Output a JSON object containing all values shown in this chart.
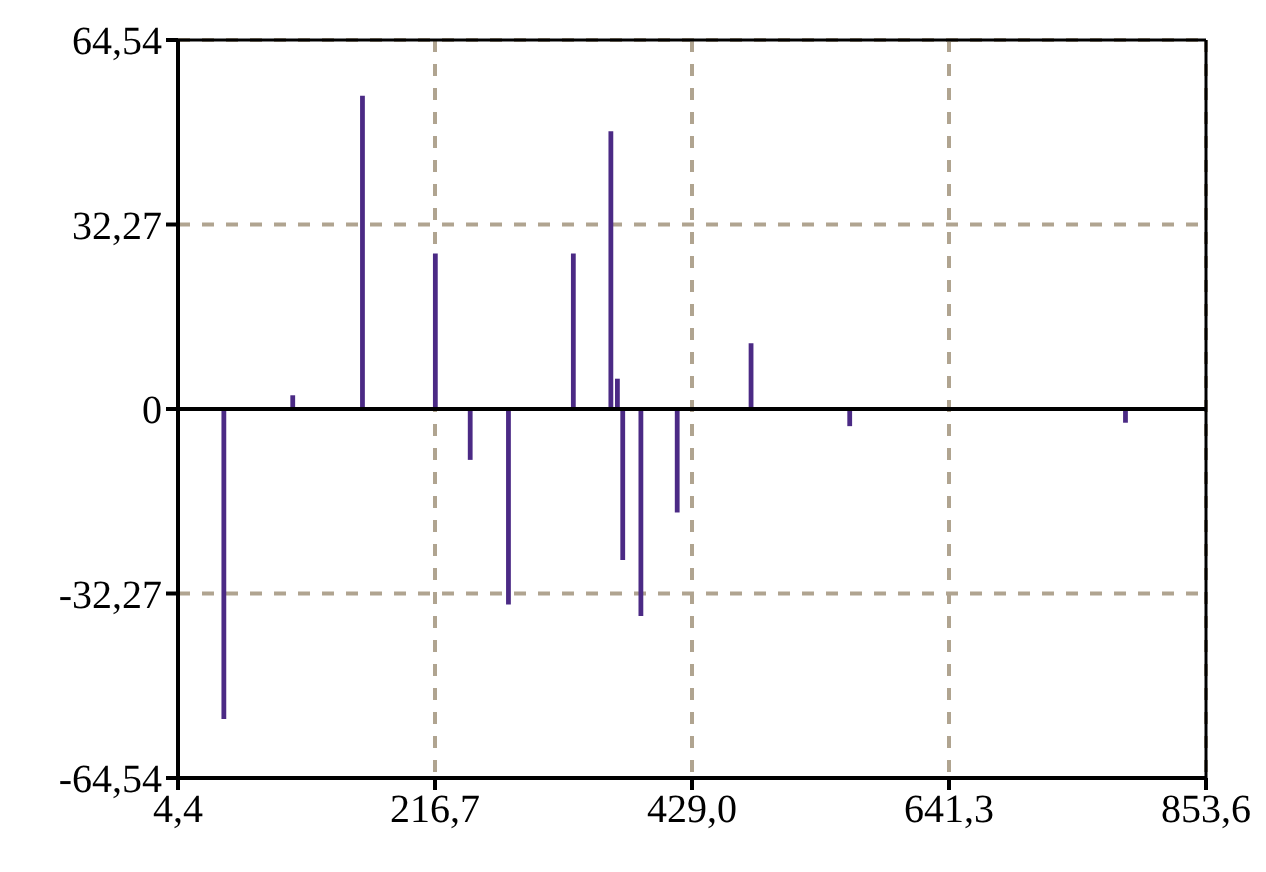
{
  "chart_data": {
    "type": "bar",
    "x": [
      42.5,
      99.4,
      157,
      217.2,
      246,
      277.6,
      331.2,
      362.2,
      367.6,
      372,
      387,
      417,
      478,
      559.5,
      787.3
    ],
    "values": [
      -54.2,
      2.4,
      54.8,
      27.2,
      -8.9,
      -34.2,
      27.2,
      48.6,
      5.3,
      -26.4,
      -36.2,
      -18.1,
      11.5,
      -3.0,
      -2.4
    ],
    "color": "#4b2a85",
    "xlim": [
      4.4,
      853.6
    ],
    "xticks": [
      {
        "value": 4.4,
        "label": "4,4"
      },
      {
        "value": 216.7,
        "label": "216,7"
      },
      {
        "value": 429.0,
        "label": "429,0"
      },
      {
        "value": 641.3,
        "label": "641,3"
      },
      {
        "value": 853.6,
        "label": "853,6"
      }
    ],
    "ylim": [
      -64.54,
      64.54
    ],
    "yticks": [
      {
        "value": -64.54,
        "label": "-64,54"
      },
      {
        "value": -32.27,
        "label": "-32,27"
      },
      {
        "value": 0,
        "label": "0"
      },
      {
        "value": 32.27,
        "label": "32,27"
      },
      {
        "value": 64.54,
        "label": "64,54"
      }
    ],
    "grid": true,
    "ref_lines": [
      {
        "axis": "y",
        "value": 0,
        "color": "#000000"
      }
    ]
  }
}
